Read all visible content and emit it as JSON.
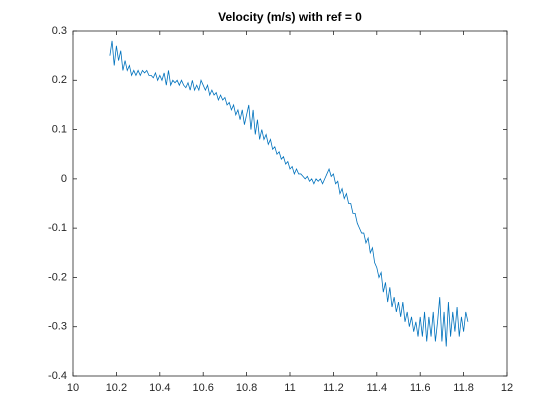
{
  "chart_data": {
    "type": "line",
    "title": "Velocity (m/s) with ref = 0",
    "x": [
      10.17,
      10.18,
      10.19,
      10.2,
      10.21,
      10.22,
      10.23,
      10.24,
      10.25,
      10.26,
      10.27,
      10.28,
      10.29,
      10.3,
      10.31,
      10.32,
      10.33,
      10.34,
      10.35,
      10.36,
      10.37,
      10.38,
      10.39,
      10.4,
      10.41,
      10.42,
      10.43,
      10.44,
      10.45,
      10.46,
      10.47,
      10.48,
      10.49,
      10.5,
      10.51,
      10.52,
      10.53,
      10.54,
      10.55,
      10.56,
      10.57,
      10.58,
      10.59,
      10.6,
      10.61,
      10.62,
      10.63,
      10.64,
      10.65,
      10.66,
      10.67,
      10.68,
      10.69,
      10.7,
      10.71,
      10.72,
      10.73,
      10.74,
      10.75,
      10.76,
      10.77,
      10.78,
      10.79,
      10.8,
      10.81,
      10.82,
      10.83,
      10.84,
      10.85,
      10.86,
      10.87,
      10.88,
      10.89,
      10.9,
      10.91,
      10.92,
      10.93,
      10.94,
      10.95,
      10.96,
      10.97,
      10.98,
      10.99,
      11.0,
      11.01,
      11.02,
      11.03,
      11.04,
      11.05,
      11.06,
      11.07,
      11.08,
      11.09,
      11.1,
      11.11,
      11.12,
      11.13,
      11.14,
      11.15,
      11.16,
      11.17,
      11.18,
      11.19,
      11.2,
      11.21,
      11.22,
      11.23,
      11.24,
      11.25,
      11.26,
      11.27,
      11.28,
      11.29,
      11.3,
      11.31,
      11.32,
      11.33,
      11.34,
      11.35,
      11.36,
      11.37,
      11.38,
      11.39,
      11.4,
      11.41,
      11.42,
      11.43,
      11.44,
      11.45,
      11.46,
      11.47,
      11.48,
      11.49,
      11.5,
      11.51,
      11.52,
      11.53,
      11.54,
      11.55,
      11.56,
      11.57,
      11.58,
      11.59,
      11.6,
      11.61,
      11.62,
      11.63,
      11.64,
      11.65,
      11.66,
      11.67,
      11.68,
      11.69,
      11.7,
      11.71,
      11.72,
      11.73,
      11.74,
      11.75,
      11.76,
      11.77,
      11.78,
      11.79,
      11.8,
      11.81,
      11.82
    ],
    "series": [
      {
        "color": "#0072bd",
        "values": [
          0.25,
          0.28,
          0.23,
          0.27,
          0.24,
          0.26,
          0.22,
          0.24,
          0.22,
          0.23,
          0.21,
          0.22,
          0.21,
          0.22,
          0.21,
          0.22,
          0.215,
          0.22,
          0.21,
          0.21,
          0.205,
          0.215,
          0.2,
          0.21,
          0.2,
          0.215,
          0.19,
          0.22,
          0.19,
          0.2,
          0.195,
          0.2,
          0.19,
          0.2,
          0.19,
          0.185,
          0.195,
          0.18,
          0.2,
          0.18,
          0.19,
          0.18,
          0.2,
          0.19,
          0.18,
          0.19,
          0.17,
          0.18,
          0.17,
          0.175,
          0.16,
          0.17,
          0.16,
          0.165,
          0.15,
          0.155,
          0.14,
          0.15,
          0.13,
          0.14,
          0.12,
          0.14,
          0.11,
          0.13,
          0.15,
          0.1,
          0.14,
          0.09,
          0.12,
          0.08,
          0.1,
          0.08,
          0.09,
          0.07,
          0.08,
          0.06,
          0.065,
          0.05,
          0.055,
          0.04,
          0.045,
          0.03,
          0.035,
          0.02,
          0.025,
          0.01,
          0.02,
          0.01,
          0.01,
          0.005,
          0.0,
          0.005,
          -0.005,
          0.0,
          -0.01,
          0.0,
          -0.005,
          0.0,
          -0.01,
          0.0,
          0.01,
          0.02,
          0.005,
          0.01,
          -0.01,
          -0.005,
          -0.03,
          -0.02,
          -0.04,
          -0.03,
          -0.05,
          -0.05,
          -0.07,
          -0.07,
          -0.09,
          -0.1,
          -0.11,
          -0.11,
          -0.13,
          -0.12,
          -0.15,
          -0.14,
          -0.17,
          -0.18,
          -0.2,
          -0.19,
          -0.23,
          -0.21,
          -0.25,
          -0.22,
          -0.26,
          -0.24,
          -0.27,
          -0.25,
          -0.28,
          -0.25,
          -0.29,
          -0.27,
          -0.3,
          -0.28,
          -0.31,
          -0.29,
          -0.32,
          -0.28,
          -0.32,
          -0.27,
          -0.33,
          -0.28,
          -0.32,
          -0.27,
          -0.33,
          -0.29,
          -0.24,
          -0.33,
          -0.27,
          -0.34,
          -0.25,
          -0.32,
          -0.27,
          -0.31,
          -0.26,
          -0.32,
          -0.28,
          -0.31,
          -0.27,
          -0.29
        ]
      }
    ],
    "xlim": [
      10,
      12
    ],
    "xticks": [
      10,
      10.2,
      10.4,
      10.6,
      10.8,
      11,
      11.2,
      11.4,
      11.6,
      11.8,
      12
    ],
    "ylim": [
      -0.4,
      0.3
    ],
    "yticks": [
      -0.4,
      -0.3,
      -0.2,
      -0.1,
      0,
      0.1,
      0.2,
      0.3
    ]
  }
}
